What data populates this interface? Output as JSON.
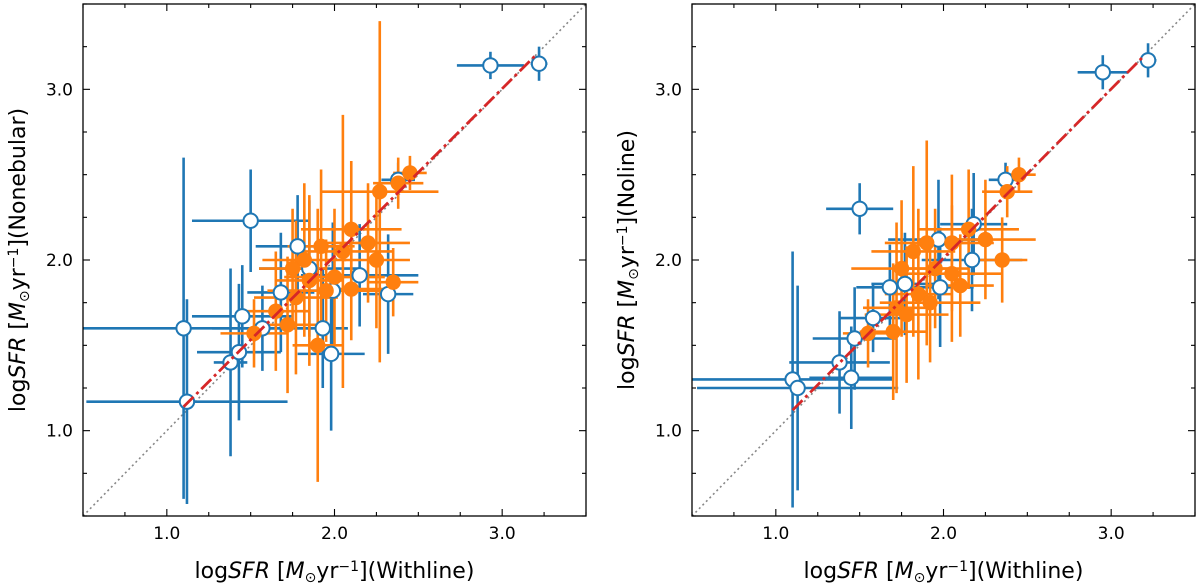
{
  "chart_data": [
    {
      "type": "scatter",
      "xlabel": "log SFR [M⊙yr⁻¹](Withline)",
      "ylabel": "log SFR [M⊙yr⁻¹](Nonebular)",
      "xlabel_suffix": "(Withline)",
      "ylabel_suffix": "(Nonebular)",
      "xlim": [
        0.5,
        3.5
      ],
      "ylim": [
        0.5,
        3.5
      ],
      "xticks": [
        1.0,
        2.0,
        3.0
      ],
      "xtick_labels": [
        "1.0",
        "2.0",
        "3.0"
      ],
      "yticks": [
        1.0,
        2.0,
        3.0
      ],
      "ytick_labels": [
        "1.0",
        "2.0",
        "3.0"
      ],
      "one_to_one_line": true,
      "fit_line": {
        "x": [
          1.1,
          3.2
        ],
        "y": [
          1.14,
          3.2
        ],
        "color": "#d62728",
        "style": "dashdot"
      },
      "series": [
        {
          "marker": "open-circle",
          "color": "#1f77b4",
          "points": [
            {
              "x": 3.22,
              "y": 3.15,
              "xerr": 0.05,
              "yerr": 0.1
            },
            {
              "x": 2.93,
              "y": 3.14,
              "xerr": 0.2,
              "yerr": 0.08
            },
            {
              "x": 1.1,
              "y": 1.6,
              "xerr": 0.6,
              "yerr": 1.0
            },
            {
              "x": 1.12,
              "y": 1.17,
              "xerr": 0.6,
              "yerr": 0.6
            },
            {
              "x": 1.5,
              "y": 2.23,
              "xerr": 0.35,
              "yerr": 0.3
            },
            {
              "x": 1.38,
              "y": 1.4,
              "xerr": 0.1,
              "yerr": 0.55
            },
            {
              "x": 1.43,
              "y": 1.46,
              "xerr": 0.25,
              "yerr": 0.4
            },
            {
              "x": 1.45,
              "y": 1.67,
              "xerr": 0.3,
              "yerr": 0.3
            },
            {
              "x": 1.57,
              "y": 1.6,
              "xerr": 0.3,
              "yerr": 0.25
            },
            {
              "x": 1.68,
              "y": 1.81,
              "xerr": 0.2,
              "yerr": 0.35
            },
            {
              "x": 1.78,
              "y": 2.08,
              "xerr": 0.25,
              "yerr": 0.3
            },
            {
              "x": 1.85,
              "y": 1.95,
              "xerr": 0.3,
              "yerr": 0.4
            },
            {
              "x": 1.93,
              "y": 1.6,
              "xerr": 0.15,
              "yerr": 0.35
            },
            {
              "x": 1.98,
              "y": 1.45,
              "xerr": 0.2,
              "yerr": 0.45
            },
            {
              "x": 1.99,
              "y": 1.82,
              "xerr": 0.35,
              "yerr": 0.4
            },
            {
              "x": 2.15,
              "y": 1.91,
              "xerr": 0.35,
              "yerr": 0.3
            },
            {
              "x": 2.32,
              "y": 1.8,
              "xerr": 0.15,
              "yerr": 0.35
            },
            {
              "x": 2.38,
              "y": 2.47,
              "xerr": 0.1,
              "yerr": 0.1
            }
          ]
        },
        {
          "marker": "filled-circle",
          "color": "#ff7f0e",
          "points": [
            {
              "x": 2.45,
              "y": 2.51,
              "xerr": 0.1,
              "yerr": 0.1
            },
            {
              "x": 2.38,
              "y": 2.45,
              "xerr": 0.15,
              "yerr": 0.15
            },
            {
              "x": 2.27,
              "y": 2.4,
              "xerr": 0.35,
              "yerr": 1.0
            },
            {
              "x": 2.1,
              "y": 2.18,
              "xerr": 0.3,
              "yerr": 0.4
            },
            {
              "x": 2.2,
              "y": 2.1,
              "xerr": 0.25,
              "yerr": 0.35
            },
            {
              "x": 2.05,
              "y": 2.05,
              "xerr": 0.3,
              "yerr": 0.8
            },
            {
              "x": 1.92,
              "y": 2.08,
              "xerr": 0.2,
              "yerr": 0.45
            },
            {
              "x": 1.82,
              "y": 2.0,
              "xerr": 0.25,
              "yerr": 0.45
            },
            {
              "x": 1.75,
              "y": 1.95,
              "xerr": 0.2,
              "yerr": 0.35
            },
            {
              "x": 1.85,
              "y": 1.88,
              "xerr": 0.2,
              "yerr": 0.5
            },
            {
              "x": 2.0,
              "y": 1.9,
              "xerr": 0.3,
              "yerr": 0.4
            },
            {
              "x": 1.95,
              "y": 1.82,
              "xerr": 0.35,
              "yerr": 0.3
            },
            {
              "x": 1.77,
              "y": 1.78,
              "xerr": 0.25,
              "yerr": 0.45
            },
            {
              "x": 1.65,
              "y": 1.7,
              "xerr": 0.2,
              "yerr": 0.35
            },
            {
              "x": 1.72,
              "y": 1.62,
              "xerr": 0.2,
              "yerr": 0.4
            },
            {
              "x": 1.52,
              "y": 1.57,
              "xerr": 0.2,
              "yerr": 0.2
            },
            {
              "x": 1.9,
              "y": 1.5,
              "xerr": 0.15,
              "yerr": 0.8
            },
            {
              "x": 2.1,
              "y": 1.83,
              "xerr": 0.2,
              "yerr": 0.3
            },
            {
              "x": 2.35,
              "y": 1.87,
              "xerr": 0.15,
              "yerr": 0.2
            },
            {
              "x": 2.25,
              "y": 2.0,
              "xerr": 0.2,
              "yerr": 0.4
            }
          ]
        }
      ]
    },
    {
      "type": "scatter",
      "xlabel": "log SFR [M⊙yr⁻¹](Withline)",
      "ylabel": "log SFR [M⊙yr⁻¹](Noline)",
      "xlabel_suffix": "(Withline)",
      "ylabel_suffix": "(Noline)",
      "xlim": [
        0.5,
        3.5
      ],
      "ylim": [
        0.5,
        3.5
      ],
      "xticks": [
        1.0,
        2.0,
        3.0
      ],
      "xtick_labels": [
        "1.0",
        "2.0",
        "3.0"
      ],
      "yticks": [
        1.0,
        2.0,
        3.0
      ],
      "ytick_labels": [
        "1.0",
        "2.0",
        "3.0"
      ],
      "one_to_one_line": true,
      "fit_line": {
        "x": [
          1.1,
          3.2
        ],
        "y": [
          1.12,
          3.2
        ],
        "color": "#d62728",
        "style": "dashdot"
      },
      "series": [
        {
          "marker": "open-circle",
          "color": "#1f77b4",
          "points": [
            {
              "x": 3.22,
              "y": 3.17,
              "xerr": 0.05,
              "yerr": 0.1
            },
            {
              "x": 2.95,
              "y": 3.1,
              "xerr": 0.15,
              "yerr": 0.1
            },
            {
              "x": 1.1,
              "y": 1.3,
              "xerr": 0.6,
              "yerr": 0.75
            },
            {
              "x": 1.13,
              "y": 1.25,
              "xerr": 0.6,
              "yerr": 0.6
            },
            {
              "x": 1.5,
              "y": 2.3,
              "xerr": 0.2,
              "yerr": 0.15
            },
            {
              "x": 1.38,
              "y": 1.4,
              "xerr": 0.3,
              "yerr": 0.3
            },
            {
              "x": 1.45,
              "y": 1.31,
              "xerr": 0.25,
              "yerr": 0.3
            },
            {
              "x": 1.47,
              "y": 1.54,
              "xerr": 0.25,
              "yerr": 0.3
            },
            {
              "x": 1.58,
              "y": 1.66,
              "xerr": 0.2,
              "yerr": 0.2
            },
            {
              "x": 1.68,
              "y": 1.84,
              "xerr": 0.2,
              "yerr": 0.25
            },
            {
              "x": 1.77,
              "y": 1.86,
              "xerr": 0.2,
              "yerr": 0.3
            },
            {
              "x": 1.97,
              "y": 2.12,
              "xerr": 0.3,
              "yerr": 0.35
            },
            {
              "x": 1.98,
              "y": 1.84,
              "xerr": 0.2,
              "yerr": 0.35
            },
            {
              "x": 2.18,
              "y": 2.21,
              "xerr": 0.2,
              "yerr": 0.3
            },
            {
              "x": 2.17,
              "y": 2.0,
              "xerr": 0.3,
              "yerr": 0.3
            },
            {
              "x": 2.37,
              "y": 2.47,
              "xerr": 0.1,
              "yerr": 0.1
            }
          ]
        },
        {
          "marker": "filled-circle",
          "color": "#ff7f0e",
          "points": [
            {
              "x": 2.45,
              "y": 2.5,
              "xerr": 0.1,
              "yerr": 0.1
            },
            {
              "x": 2.38,
              "y": 2.4,
              "xerr": 0.15,
              "yerr": 0.15
            },
            {
              "x": 2.25,
              "y": 2.12,
              "xerr": 0.3,
              "yerr": 0.35
            },
            {
              "x": 2.15,
              "y": 2.18,
              "xerr": 0.3,
              "yerr": 0.35
            },
            {
              "x": 2.05,
              "y": 2.1,
              "xerr": 0.25,
              "yerr": 0.4
            },
            {
              "x": 1.9,
              "y": 2.1,
              "xerr": 0.25,
              "yerr": 0.6
            },
            {
              "x": 1.82,
              "y": 2.05,
              "xerr": 0.25,
              "yerr": 0.5
            },
            {
              "x": 1.75,
              "y": 1.95,
              "xerr": 0.3,
              "yerr": 0.4
            },
            {
              "x": 1.95,
              "y": 1.95,
              "xerr": 0.2,
              "yerr": 0.35
            },
            {
              "x": 2.05,
              "y": 1.92,
              "xerr": 0.3,
              "yerr": 0.4
            },
            {
              "x": 1.85,
              "y": 1.8,
              "xerr": 0.2,
              "yerr": 0.5
            },
            {
              "x": 1.72,
              "y": 1.72,
              "xerr": 0.2,
              "yerr": 0.5
            },
            {
              "x": 1.78,
              "y": 1.68,
              "xerr": 0.25,
              "yerr": 0.4
            },
            {
              "x": 1.7,
              "y": 1.58,
              "xerr": 0.2,
              "yerr": 0.4
            },
            {
              "x": 1.55,
              "y": 1.57,
              "xerr": 0.15,
              "yerr": 0.2
            },
            {
              "x": 1.92,
              "y": 1.75,
              "xerr": 0.3,
              "yerr": 0.35
            },
            {
              "x": 2.1,
              "y": 1.85,
              "xerr": 0.2,
              "yerr": 0.3
            },
            {
              "x": 2.35,
              "y": 2.0,
              "xerr": 0.15,
              "yerr": 0.25
            }
          ]
        }
      ]
    }
  ]
}
